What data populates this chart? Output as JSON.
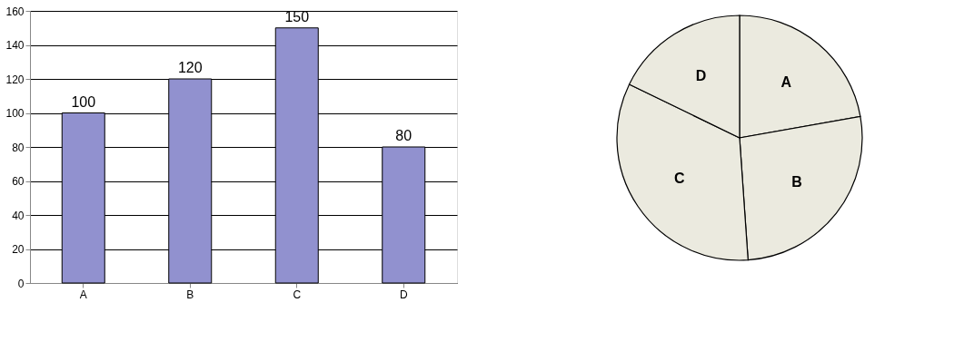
{
  "chart_data": [
    {
      "type": "bar",
      "categories": [
        "A",
        "B",
        "C",
        "D"
      ],
      "values": [
        100,
        120,
        150,
        80
      ],
      "color": "#9191cf",
      "ylim": [
        0,
        160
      ],
      "yticks": [
        0,
        20,
        40,
        60,
        80,
        100,
        120,
        140,
        160
      ],
      "grid": "y",
      "data_labels": true
    },
    {
      "type": "pie",
      "categories": [
        "A",
        "B",
        "C",
        "D"
      ],
      "values": [
        22.2,
        26.7,
        33.3,
        17.8
      ],
      "colors": [
        "#ebeadf",
        "#ebeadf",
        "#ebeadf",
        "#ebeadf"
      ]
    }
  ]
}
